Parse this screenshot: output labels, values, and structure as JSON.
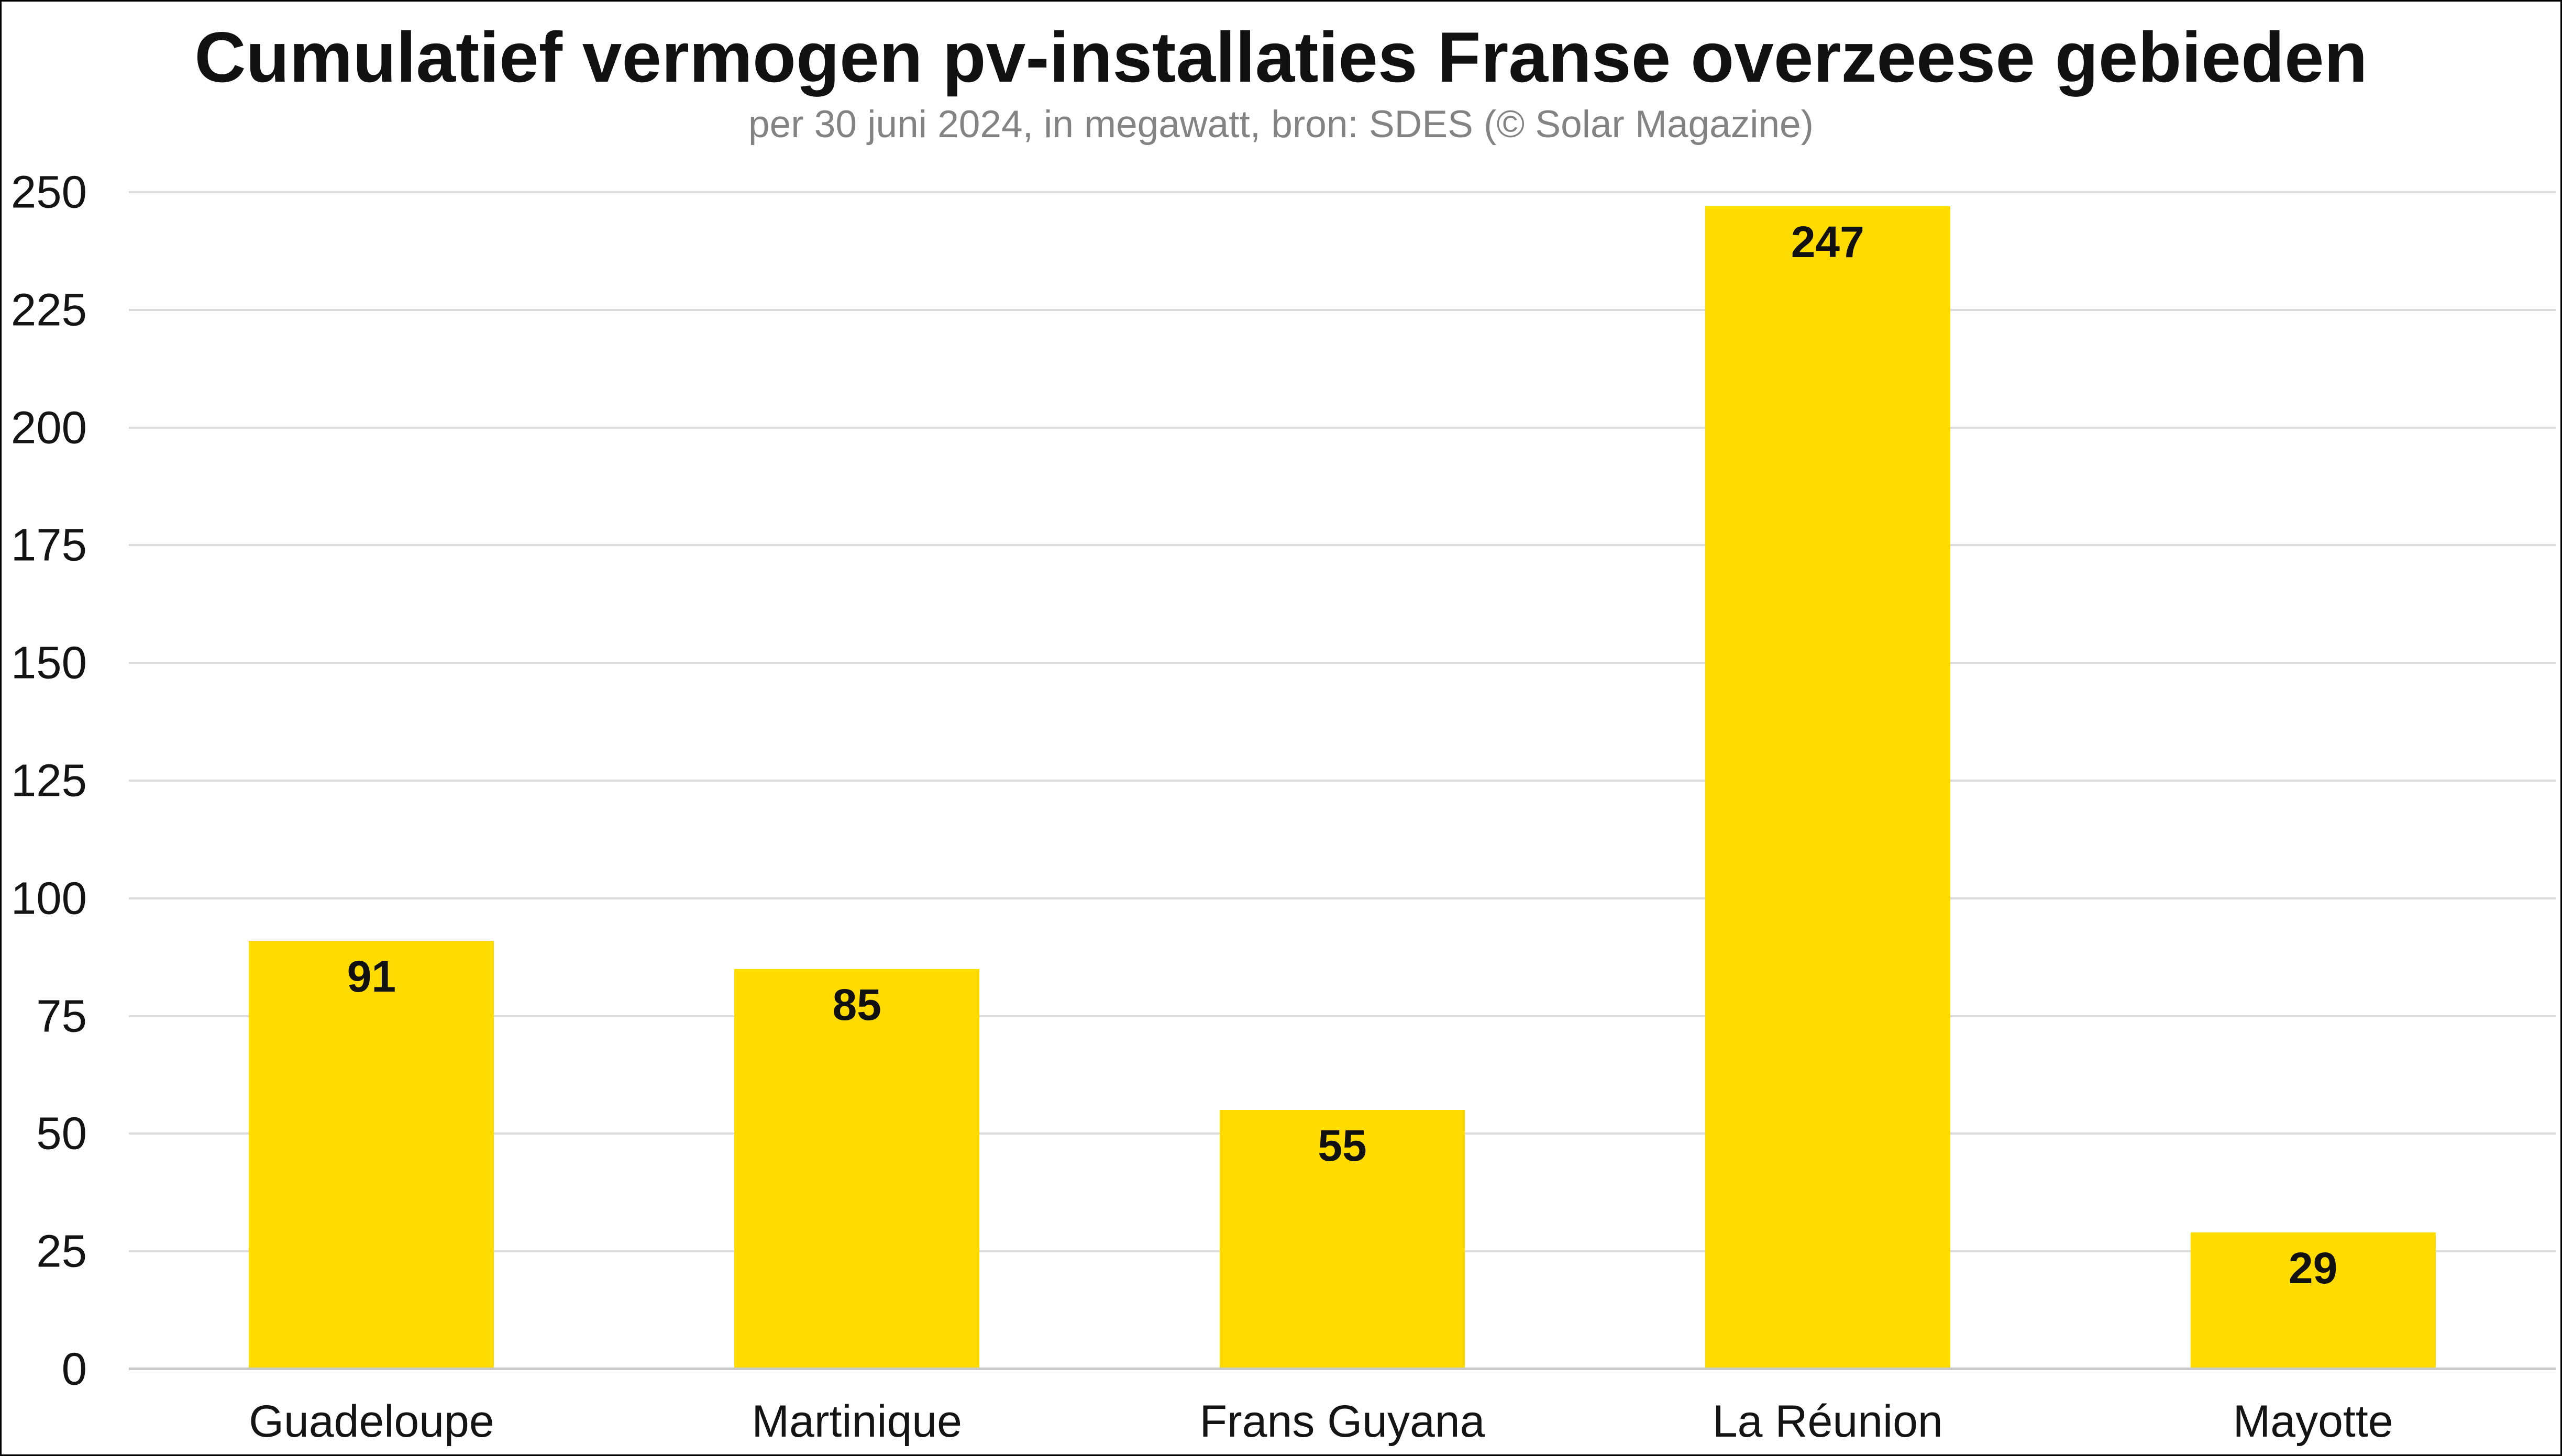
{
  "page": {
    "background": "#ffffff",
    "frame_color": "#000000"
  },
  "chart_data": {
    "type": "bar",
    "title": "Cumulatief vermogen pv-installaties Franse overzeese gebieden",
    "subtitle": "per 30 juni 2024, in megawatt, bron: SDES (© Solar Magazine)",
    "categories": [
      "Guadeloupe",
      "Martinique",
      "Frans Guyana",
      "La Réunion",
      "Mayotte"
    ],
    "values": [
      91,
      85,
      55,
      247,
      29
    ],
    "value_labels": [
      "91",
      "85",
      "55",
      "247",
      "29"
    ],
    "xlabel": "",
    "ylabel": "",
    "ylim": [
      0,
      250
    ],
    "yticks": [
      0,
      25,
      50,
      75,
      100,
      125,
      150,
      175,
      200,
      225,
      250
    ],
    "grid": true,
    "legend": "none",
    "colors": {
      "bar": "#ffdb00",
      "value_label": "#111111",
      "title": "#111111",
      "subtitle": "#838383",
      "axis_text": "#141414",
      "gridline": "#dbdbdb",
      "baseline": "#c9c9c9"
    }
  }
}
